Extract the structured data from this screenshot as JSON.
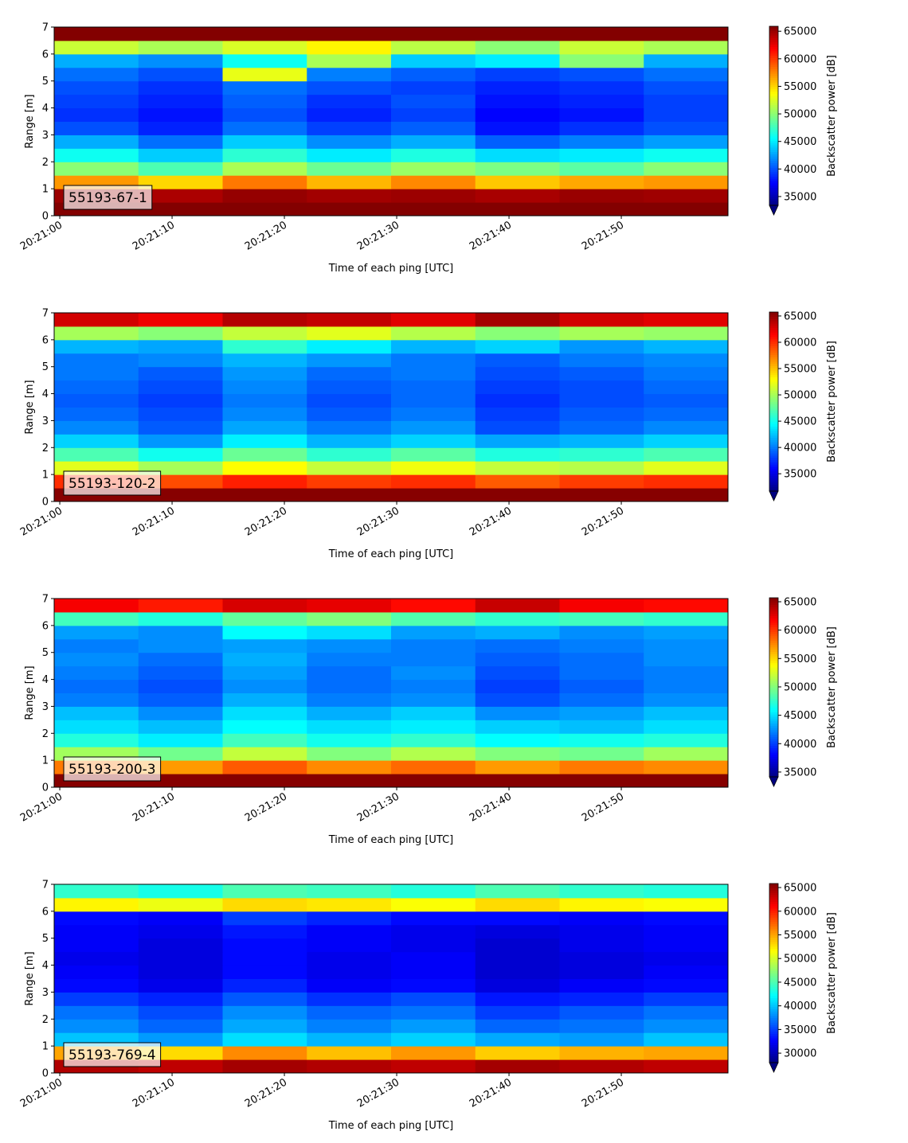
{
  "chart_data": [
    {
      "type": "heatmap",
      "label": "55193-67-1",
      "xlabel": "Time of each ping [UTC]",
      "ylabel": "Range [m]",
      "clabel": "Backscatter power [dB]",
      "colormap": "jet",
      "extend": "min",
      "xlim": [
        73259.5,
        73319.5
      ],
      "xticks": [
        {
          "value": 73260,
          "label": "20:21:00"
        },
        {
          "value": 73270,
          "label": "20:21:10"
        },
        {
          "value": 73280,
          "label": "20:21:20"
        },
        {
          "value": 73290,
          "label": "20:21:30"
        },
        {
          "value": 73300,
          "label": "20:21:40"
        },
        {
          "value": 73310,
          "label": "20:21:50"
        }
      ],
      "ylim": [
        0,
        7
      ],
      "yticks": [
        0,
        1,
        2,
        3,
        4,
        5,
        6,
        7
      ],
      "clim": [
        33400,
        65900
      ],
      "cticks": [
        35000,
        40000,
        45000,
        50000,
        55000,
        60000,
        65000
      ],
      "xbins": [
        73259.5,
        73267,
        73274.5,
        73282,
        73289.5,
        73297,
        73304.5,
        73312,
        73319.5
      ],
      "ybins": [
        0,
        0.5,
        1,
        1.5,
        2,
        2.5,
        3,
        3.5,
        4,
        4.5,
        5,
        5.5,
        6,
        6.5,
        7
      ],
      "z": [
        [
          65800,
          65800,
          65800,
          65800,
          65800,
          65800,
          65800,
          65800
        ],
        [
          65000,
          64500,
          65200,
          64800,
          65000,
          64600,
          65100,
          64900
        ],
        [
          57000,
          55000,
          58000,
          56000,
          57500,
          55500,
          56500,
          57000
        ],
        [
          50000,
          48000,
          51000,
          49000,
          50500,
          49500,
          48500,
          50000
        ],
        [
          46000,
          44000,
          47000,
          45000,
          46500,
          44500,
          45000,
          46000
        ],
        [
          43000,
          41000,
          44000,
          42000,
          43000,
          40500,
          41500,
          42500
        ],
        [
          40000,
          38500,
          41000,
          39500,
          40500,
          38000,
          39000,
          40000
        ],
        [
          39000,
          38000,
          40000,
          38500,
          39500,
          37500,
          38000,
          39500
        ],
        [
          39500,
          38500,
          40500,
          39000,
          40000,
          38000,
          38500,
          39500
        ],
        [
          40000,
          39000,
          41000,
          40000,
          39500,
          38500,
          39000,
          40000
        ],
        [
          41000,
          40000,
          53000,
          41500,
          40500,
          39500,
          40000,
          41000
        ],
        [
          43000,
          42000,
          46000,
          51000,
          44000,
          45000,
          50000,
          43000
        ],
        [
          52000,
          51000,
          52500,
          54000,
          51500,
          50000,
          52000,
          51000
        ],
        [
          65800,
          65800,
          65800,
          65800,
          65800,
          65800,
          65800,
          65800
        ]
      ]
    },
    {
      "type": "heatmap",
      "label": "55193-120-2",
      "xlabel": "Time of each ping [UTC]",
      "ylabel": "Range [m]",
      "clabel": "Backscatter power [dB]",
      "colormap": "jet",
      "extend": "min",
      "xlim": [
        73259.5,
        73319.5
      ],
      "xticks": [
        {
          "value": 73260,
          "label": "20:21:00"
        },
        {
          "value": 73270,
          "label": "20:21:10"
        },
        {
          "value": 73280,
          "label": "20:21:20"
        },
        {
          "value": 73290,
          "label": "20:21:30"
        },
        {
          "value": 73300,
          "label": "20:21:40"
        },
        {
          "value": 73310,
          "label": "20:21:50"
        }
      ],
      "ylim": [
        0,
        7
      ],
      "yticks": [
        0,
        1,
        2,
        3,
        4,
        5,
        6,
        7
      ],
      "clim": [
        31700,
        65750
      ],
      "cticks": [
        35000,
        40000,
        45000,
        50000,
        55000,
        60000,
        65000
      ],
      "xbins": [
        73259.5,
        73267,
        73274.5,
        73282,
        73289.5,
        73297,
        73304.5,
        73312,
        73319.5
      ],
      "ybins": [
        0,
        0.5,
        1,
        1.5,
        2,
        2.5,
        3,
        3.5,
        4,
        4.5,
        5,
        5.5,
        6,
        6.5,
        7
      ],
      "z": [
        [
          65500,
          65500,
          65500,
          65500,
          65500,
          65500,
          65500,
          65500
        ],
        [
          60000,
          59000,
          60500,
          59500,
          60000,
          58500,
          59500,
          60000
        ],
        [
          52000,
          50000,
          53000,
          51000,
          52500,
          51000,
          50500,
          52000
        ],
        [
          47000,
          45000,
          48000,
          46000,
          47500,
          45500,
          46000,
          47000
        ],
        [
          43000,
          41000,
          44000,
          42000,
          43000,
          41500,
          42000,
          43000
        ],
        [
          40500,
          39000,
          41500,
          40000,
          41000,
          38500,
          39500,
          40500
        ],
        [
          39500,
          38500,
          40500,
          39000,
          40000,
          38000,
          39000,
          39500
        ],
        [
          39000,
          38000,
          40000,
          38500,
          39500,
          37500,
          38500,
          39000
        ],
        [
          39500,
          38500,
          40500,
          39000,
          39500,
          38000,
          38500,
          39500
        ],
        [
          40000,
          39000,
          41000,
          39500,
          40000,
          38500,
          39000,
          40000
        ],
        [
          40000,
          40500,
          42000,
          41000,
          40000,
          39000,
          40000,
          40500
        ],
        [
          42000,
          41500,
          46000,
          44000,
          42000,
          43000,
          41000,
          42000
        ],
        [
          50000,
          49000,
          51000,
          52000,
          50500,
          49000,
          50000,
          49500
        ],
        [
          63000,
          62000,
          64000,
          63500,
          62500,
          64500,
          63000,
          62500
        ]
      ]
    },
    {
      "type": "heatmap",
      "label": "55193-200-3",
      "xlabel": "Time of each ping [UTC]",
      "ylabel": "Range [m]",
      "clabel": "Backscatter power [dB]",
      "colormap": "jet",
      "extend": "min",
      "xlim": [
        73259.5,
        73319.5
      ],
      "xticks": [
        {
          "value": 73260,
          "label": "20:21:00"
        },
        {
          "value": 73270,
          "label": "20:21:10"
        },
        {
          "value": 73280,
          "label": "20:21:20"
        },
        {
          "value": 73290,
          "label": "20:21:30"
        },
        {
          "value": 73300,
          "label": "20:21:40"
        },
        {
          "value": 73310,
          "label": "20:21:50"
        }
      ],
      "ylim": [
        0,
        7
      ],
      "yticks": [
        0,
        1,
        2,
        3,
        4,
        5,
        6,
        7
      ],
      "clim": [
        34150,
        65700
      ],
      "cticks": [
        35000,
        40000,
        45000,
        50000,
        55000,
        60000,
        65000
      ],
      "xbins": [
        73259.5,
        73267,
        73274.5,
        73282,
        73289.5,
        73297,
        73304.5,
        73312,
        73319.5
      ],
      "ybins": [
        0,
        0.5,
        1,
        1.5,
        2,
        2.5,
        3,
        3.5,
        4,
        4.5,
        5,
        5.5,
        6,
        6.5,
        7
      ],
      "z": [
        [
          65500,
          65500,
          65500,
          65500,
          65500,
          65500,
          65500,
          65500
        ],
        [
          58000,
          57000,
          59000,
          57500,
          58500,
          57000,
          58000,
          57500
        ],
        [
          51000,
          49500,
          52000,
          50000,
          51500,
          50000,
          49500,
          51000
        ],
        [
          47000,
          45500,
          48000,
          46500,
          47500,
          46000,
          46500,
          47000
        ],
        [
          45000,
          44000,
          46000,
          45000,
          45500,
          44500,
          44000,
          45000
        ],
        [
          44000,
          42500,
          45000,
          43500,
          44500,
          42500,
          43000,
          44000
        ],
        [
          42000,
          41000,
          43500,
          42000,
          42500,
          40500,
          41500,
          42500
        ],
        [
          41500,
          40500,
          42500,
          41500,
          42000,
          40000,
          41000,
          42000
        ],
        [
          42000,
          41000,
          43000,
          41500,
          42500,
          40500,
          41500,
          42000
        ],
        [
          42500,
          41500,
          43500,
          42000,
          42000,
          41000,
          41500,
          42500
        ],
        [
          42000,
          42500,
          43000,
          42500,
          42000,
          41500,
          42000,
          42500
        ],
        [
          43000,
          42500,
          46000,
          45000,
          43000,
          43500,
          42500,
          43000
        ],
        [
          48000,
          47000,
          49000,
          50000,
          48500,
          47500,
          48000,
          47500
        ],
        [
          62000,
          61000,
          63000,
          62500,
          61500,
          63500,
          62000,
          61500
        ]
      ]
    },
    {
      "type": "heatmap",
      "label": "55193-769-4",
      "xlabel": "Time of each ping [UTC]",
      "ylabel": "Range [m]",
      "clabel": "Backscatter power [dB]",
      "colormap": "jet",
      "extend": "min",
      "xlim": [
        73259.5,
        73319.5
      ],
      "xticks": [
        {
          "value": 73260,
          "label": "20:21:00"
        },
        {
          "value": 73270,
          "label": "20:21:10"
        },
        {
          "value": 73280,
          "label": "20:21:20"
        },
        {
          "value": 73290,
          "label": "20:21:30"
        },
        {
          "value": 73300,
          "label": "20:21:40"
        },
        {
          "value": 73310,
          "label": "20:21:50"
        }
      ],
      "ylim": [
        0,
        7
      ],
      "yticks": [
        0,
        1,
        2,
        3,
        4,
        5,
        6,
        7
      ],
      "clim": [
        28000,
        65850
      ],
      "cticks": [
        30000,
        35000,
        40000,
        45000,
        50000,
        55000,
        60000,
        65000
      ],
      "xbins": [
        73259.5,
        73267,
        73274.5,
        73282,
        73289.5,
        73297,
        73304.5,
        73312,
        73319.5
      ],
      "ybins": [
        0,
        0.5,
        1,
        1.5,
        2,
        2.5,
        3,
        3.5,
        4,
        4.5,
        5,
        5.5,
        6,
        6.5,
        7
      ],
      "z": [
        [
          64000,
          63500,
          64500,
          64000,
          63500,
          64500,
          64000,
          63500
        ],
        [
          55000,
          53000,
          56000,
          54000,
          55500,
          53500,
          54500,
          55000
        ],
        [
          40000,
          38500,
          41000,
          39500,
          40500,
          39000,
          38500,
          40000
        ],
        [
          38000,
          36500,
          39000,
          37500,
          38500,
          36500,
          37000,
          38000
        ],
        [
          37000,
          35500,
          38000,
          36500,
          37000,
          35000,
          36000,
          37000
        ],
        [
          35000,
          34000,
          36000,
          34500,
          35500,
          33500,
          34000,
          35000
        ],
        [
          33000,
          32000,
          34000,
          32500,
          33000,
          31500,
          32500,
          33000
        ],
        [
          32500,
          31500,
          33000,
          32000,
          32500,
          31000,
          31500,
          32500
        ],
        [
          32000,
          31500,
          33000,
          32000,
          32500,
          31000,
          31500,
          32000
        ],
        [
          32500,
          31500,
          33000,
          32500,
          32000,
          31000,
          32000,
          32500
        ],
        [
          32500,
          32000,
          33500,
          32500,
          32000,
          31500,
          32000,
          32500
        ],
        [
          33000,
          32500,
          35000,
          34000,
          33000,
          33000,
          32500,
          33000
        ],
        [
          52000,
          51000,
          53000,
          52500,
          51500,
          53000,
          52000,
          51500
        ],
        [
          44000,
          43000,
          45000,
          44500,
          43500,
          45000,
          44000,
          43500
        ]
      ]
    }
  ]
}
